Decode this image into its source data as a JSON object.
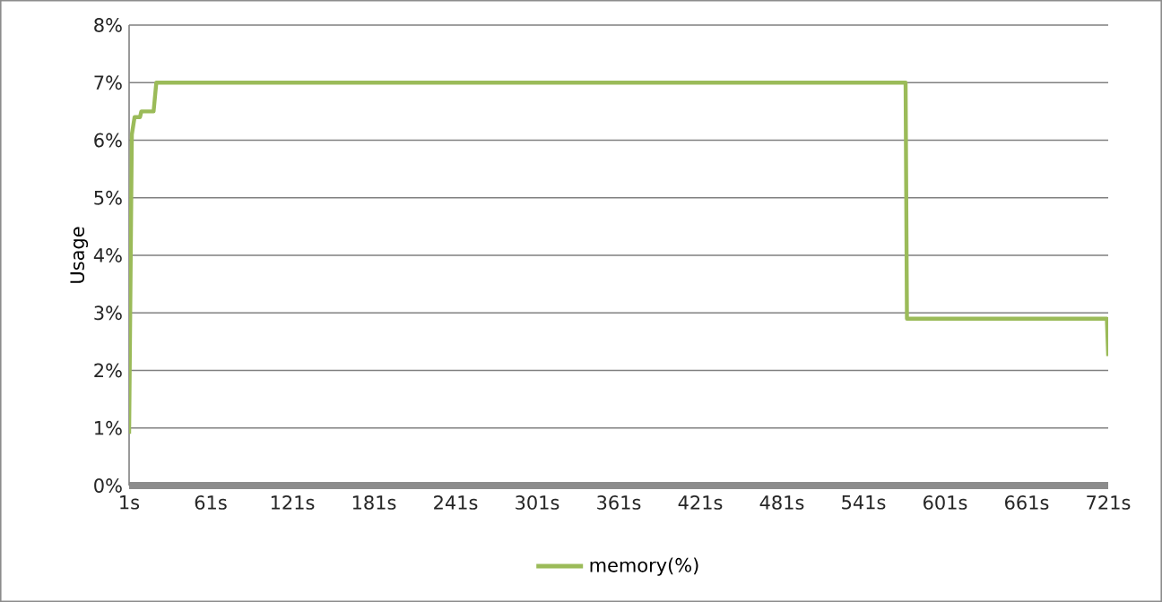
{
  "chart_data": {
    "type": "line",
    "ylabel": "Usage",
    "legend": "bottom",
    "grid": "y",
    "line_style": "solid",
    "xlim": [
      1,
      721
    ],
    "xticks": [
      {
        "value": 1,
        "label": "1s"
      },
      {
        "value": 61,
        "label": "61s"
      },
      {
        "value": 121,
        "label": "121s"
      },
      {
        "value": 181,
        "label": "181s"
      },
      {
        "value": 241,
        "label": "241s"
      },
      {
        "value": 301,
        "label": "301s"
      },
      {
        "value": 361,
        "label": "361s"
      },
      {
        "value": 421,
        "label": "421s"
      },
      {
        "value": 481,
        "label": "481s"
      },
      {
        "value": 541,
        "label": "541s"
      },
      {
        "value": 601,
        "label": "601s"
      },
      {
        "value": 661,
        "label": "661s"
      },
      {
        "value": 721,
        "label": "721s"
      }
    ],
    "ylim": [
      0,
      8
    ],
    "yticks": [
      {
        "value": 0,
        "label": "0%"
      },
      {
        "value": 1,
        "label": "1%"
      },
      {
        "value": 2,
        "label": "2%"
      },
      {
        "value": 3,
        "label": "3%"
      },
      {
        "value": 4,
        "label": "4%"
      },
      {
        "value": 5,
        "label": "5%"
      },
      {
        "value": 6,
        "label": "6%"
      },
      {
        "value": 7,
        "label": "7%"
      },
      {
        "value": 8,
        "label": "8%"
      }
    ],
    "series": [
      {
        "name": "memory(%)",
        "color": "#9bbb59",
        "x": [
          1,
          3,
          5,
          9,
          10,
          19,
          21,
          572,
          573,
          720,
          721
        ],
        "values": [
          0.9,
          6.1,
          6.4,
          6.4,
          6.5,
          6.5,
          7.0,
          7.0,
          2.9,
          2.9,
          2.25
        ]
      }
    ]
  }
}
